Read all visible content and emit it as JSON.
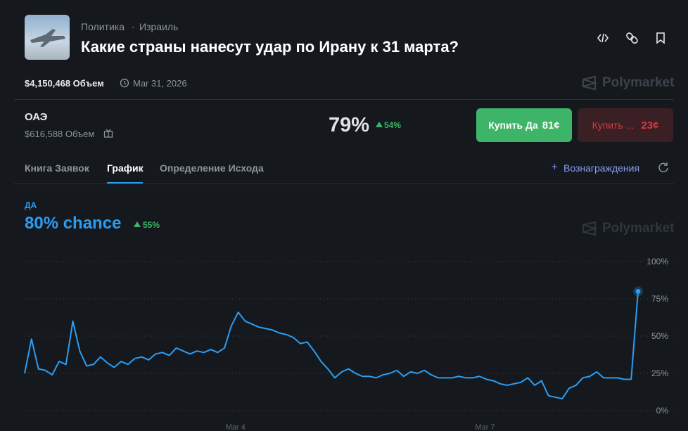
{
  "header": {
    "category": "Политика",
    "separator": "·",
    "tag": "Израиль",
    "title": "Какие страны нанесут удар по Ирану к 31 марта?"
  },
  "meta": {
    "volume": "$4,150,468 Объем",
    "date": "Mar 31, 2026",
    "brand": "Polymarket"
  },
  "outcome": {
    "name": "ОАЭ",
    "volume": "$616,588 Объем",
    "probability": "79%",
    "change": "54%",
    "buy_yes": "Купить Да",
    "yes_price": "81¢",
    "buy_no": "Купить ...",
    "no_price": "23¢"
  },
  "tabs": {
    "items": [
      "Книга Заявок",
      "График",
      "Определение Исхода"
    ],
    "rewards": "Вознаграждения"
  },
  "chart_data": {
    "type": "line",
    "series_label": "ДА",
    "headline": "80% chance",
    "change": "55%",
    "watermark": "Polymarket",
    "color": "#2a9df4",
    "grid": true,
    "values": [
      25,
      48,
      28,
      27,
      24,
      33,
      31,
      60,
      40,
      30,
      31,
      36,
      32,
      29,
      33,
      31,
      35,
      36,
      34,
      38,
      39,
      37,
      42,
      40,
      38,
      40,
      39,
      41,
      39,
      42,
      57,
      66,
      60,
      58,
      56,
      55,
      54,
      52,
      51,
      49,
      45,
      46,
      40,
      33,
      28,
      22,
      26,
      28,
      25,
      23,
      23,
      22,
      24,
      25,
      27,
      23,
      26,
      25,
      27,
      24,
      22,
      22,
      22,
      23,
      22,
      22,
      23,
      21,
      20,
      18,
      17,
      18,
      19,
      22,
      17,
      20,
      10,
      9,
      8,
      15,
      17,
      22,
      23,
      26,
      22,
      22,
      22,
      21,
      21,
      80
    ],
    "xlim": [
      0,
      89
    ],
    "xticks": [
      {
        "value": 30.6,
        "label": "Mar 4"
      },
      {
        "value": 66.8,
        "label": "Mar 7"
      }
    ],
    "ylim": [
      0,
      100
    ],
    "yticks": [
      {
        "value": 0,
        "label": "0%"
      },
      {
        "value": 25,
        "label": "25%"
      },
      {
        "value": 50,
        "label": "50%"
      },
      {
        "value": 75,
        "label": "75%"
      },
      {
        "value": 100,
        "label": "100%"
      }
    ]
  }
}
